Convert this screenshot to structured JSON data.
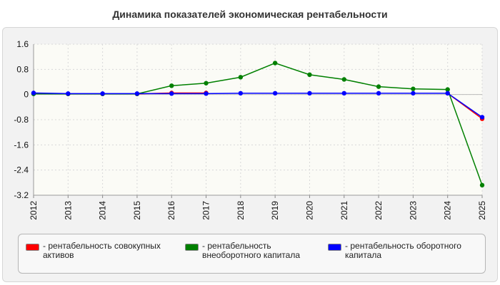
{
  "chart_data": {
    "type": "line",
    "title": "Динамика показателей экономическая рентабельности",
    "x": [
      "2012",
      "2013",
      "2014",
      "2015",
      "2016",
      "2017",
      "2018",
      "2019",
      "2020",
      "2021",
      "2022",
      "2023",
      "2024",
      "2025"
    ],
    "ylim": [
      -3.2,
      1.6
    ],
    "yticks": [
      "1.6",
      "0.8",
      "0",
      "-0.8",
      "-1.6",
      "-2.4",
      "-3.2"
    ],
    "grid": true,
    "legend_position": "bottom",
    "series": [
      {
        "name": "рентабельность совокупных активов",
        "color": "#ff0000",
        "values": [
          0.03,
          0.02,
          0.02,
          0.02,
          0.05,
          0.05,
          null,
          null,
          null,
          null,
          null,
          null,
          0.04,
          -0.77
        ]
      },
      {
        "name": "рентабельность внеоборотного капитала",
        "color": "#008000",
        "values": [
          0.02,
          0.02,
          0.02,
          0.02,
          0.28,
          0.36,
          0.55,
          1.0,
          0.63,
          0.48,
          0.25,
          0.18,
          0.16,
          -2.88
        ]
      },
      {
        "name": "рентабельность оборотного капитала",
        "color": "#0000ff",
        "values": [
          0.05,
          0.03,
          0.03,
          0.03,
          0.03,
          0.03,
          0.04,
          0.04,
          0.04,
          0.04,
          0.04,
          0.04,
          0.04,
          -0.72
        ]
      }
    ]
  }
}
